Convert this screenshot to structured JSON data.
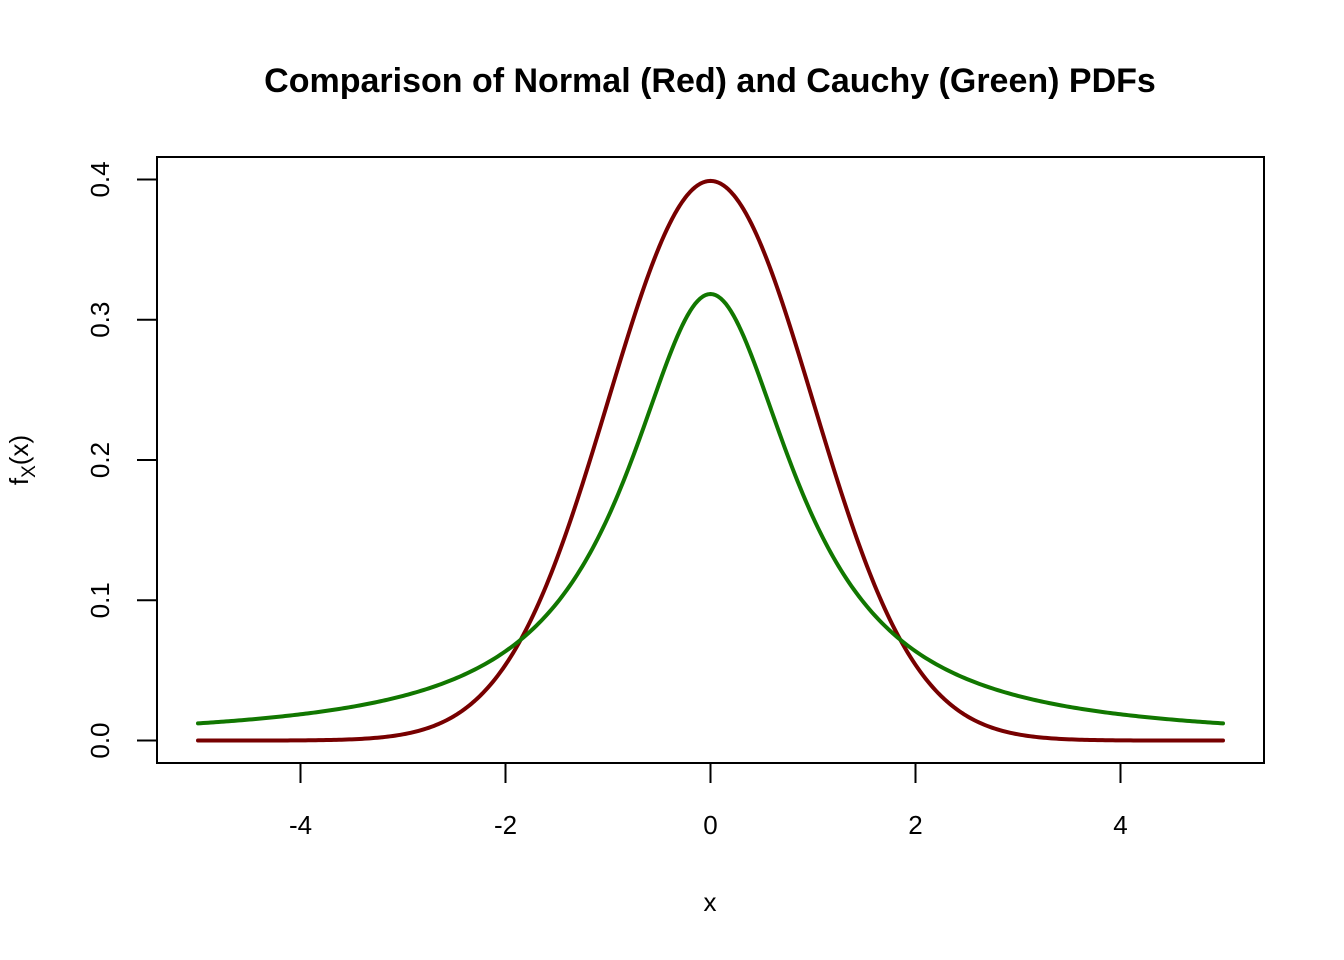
{
  "chart_data": {
    "type": "line",
    "title": "Comparison of Normal (Red) and Cauchy (Green) PDFs",
    "xlabel": "x",
    "ylabel": {
      "base": "f",
      "sub": "X",
      "rest": "(x)"
    },
    "xlim": [
      -5.4,
      5.4
    ],
    "ylim": [
      -0.016,
      0.416
    ],
    "x_ticks": [
      -4,
      -2,
      0,
      2,
      4
    ],
    "x_tick_labels": [
      "-4",
      "-2",
      "0",
      "2",
      "4"
    ],
    "y_ticks": [
      0.0,
      0.1,
      0.2,
      0.3,
      0.4
    ],
    "y_tick_labels": [
      "0.0",
      "0.1",
      "0.2",
      "0.3",
      "0.4"
    ],
    "grid": false,
    "legend": "none",
    "x_range": [
      -5,
      5
    ],
    "series": [
      {
        "color": "#770000",
        "function": "dnorm",
        "x": [
          -5,
          -4,
          -3,
          -2.5,
          -2,
          -1.5,
          -1,
          -0.5,
          0,
          0.5,
          1,
          1.5,
          2,
          2.5,
          3,
          4,
          5
        ],
        "values": [
          1.5e-06,
          0.000134,
          0.00443,
          0.0175,
          0.054,
          0.1295,
          0.242,
          0.352,
          0.399,
          0.352,
          0.242,
          0.1295,
          0.054,
          0.0175,
          0.00443,
          0.000134,
          1.5e-06
        ]
      },
      {
        "color": "#117700",
        "function": "dcauchy",
        "x": [
          -5,
          -4,
          -3,
          -2.5,
          -2,
          -1.5,
          -1,
          -0.5,
          0,
          0.5,
          1,
          1.5,
          2,
          2.5,
          3,
          4,
          5
        ],
        "values": [
          0.0122,
          0.0187,
          0.0318,
          0.0439,
          0.0637,
          0.0979,
          0.159,
          0.255,
          0.318,
          0.255,
          0.159,
          0.0979,
          0.0637,
          0.0439,
          0.0318,
          0.0187,
          0.0122
        ]
      }
    ]
  }
}
